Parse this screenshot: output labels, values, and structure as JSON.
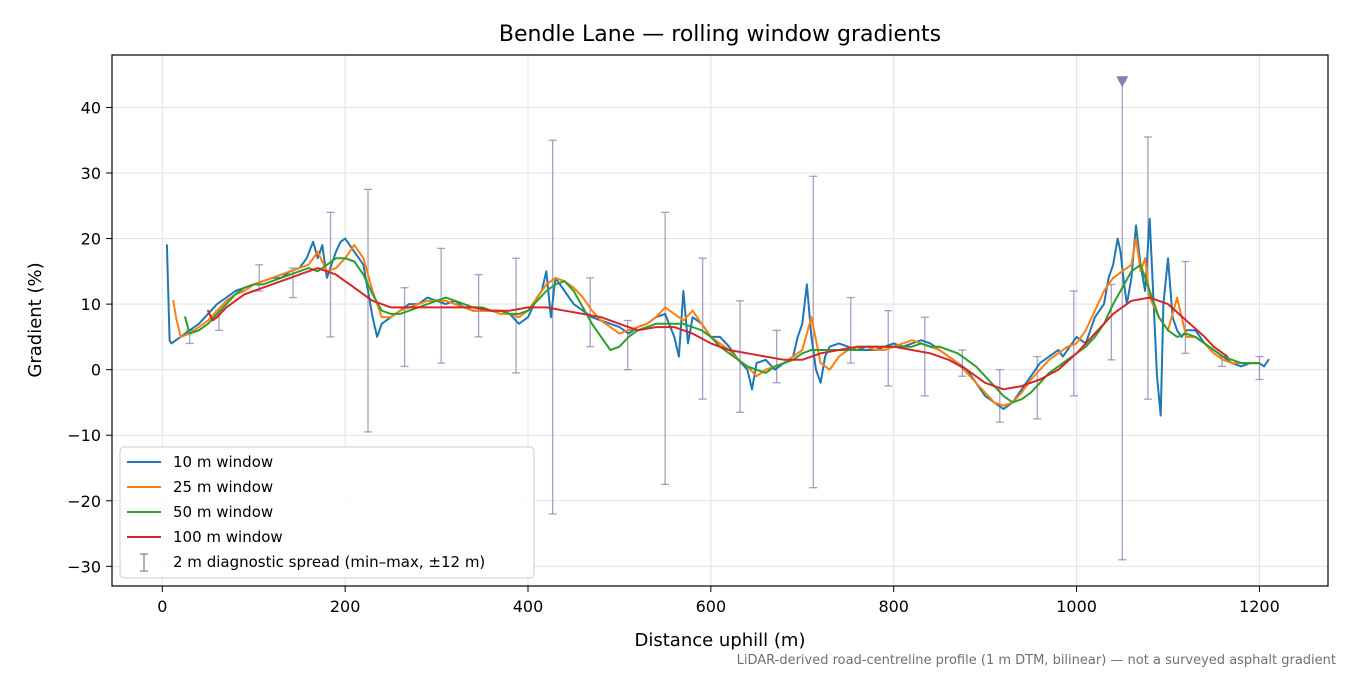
{
  "chart_data": {
    "type": "line",
    "title": "Bendle Lane — rolling window gradients",
    "xlabel": "Distance uphill (m)",
    "ylabel": "Gradient (%)",
    "xlim": [
      -55,
      1275
    ],
    "ylim": [
      -33,
      48
    ],
    "xticks": [
      0,
      200,
      400,
      600,
      800,
      1000,
      1200
    ],
    "yticks": [
      -30,
      -20,
      -10,
      0,
      10,
      20,
      30,
      40
    ],
    "xtick_labels": [
      "0",
      "200",
      "400",
      "600",
      "800",
      "1000",
      "1200"
    ],
    "ytick_labels": [
      "−30",
      "−20",
      "−10",
      "0",
      "10",
      "20",
      "30",
      "40"
    ],
    "grid": true,
    "legend_position": "lower-left",
    "footnote": "LiDAR-derived road-centreline profile (1 m DTM, bilinear) — not a surveyed asphalt gradient",
    "series": [
      {
        "name": "10 m window",
        "color": "#1f77b4",
        "x": [
          5,
          8,
          10,
          15,
          20,
          25,
          30,
          40,
          50,
          60,
          70,
          80,
          90,
          100,
          110,
          120,
          130,
          140,
          150,
          158,
          165,
          170,
          175,
          180,
          185,
          190,
          195,
          200,
          205,
          210,
          215,
          220,
          225,
          230,
          235,
          240,
          250,
          260,
          270,
          280,
          290,
          300,
          310,
          320,
          330,
          340,
          350,
          360,
          370,
          380,
          390,
          400,
          410,
          415,
          420,
          425,
          430,
          435,
          440,
          445,
          450,
          460,
          470,
          480,
          490,
          500,
          510,
          520,
          530,
          540,
          550,
          560,
          565,
          570,
          575,
          580,
          590,
          600,
          610,
          620,
          630,
          640,
          645,
          650,
          660,
          670,
          680,
          690,
          695,
          700,
          705,
          710,
          715,
          720,
          725,
          730,
          740,
          750,
          760,
          770,
          780,
          790,
          800,
          810,
          820,
          830,
          840,
          850,
          860,
          870,
          880,
          890,
          900,
          910,
          920,
          930,
          940,
          950,
          960,
          970,
          980,
          985,
          990,
          1000,
          1010,
          1020,
          1030,
          1035,
          1040,
          1045,
          1048,
          1052,
          1055,
          1060,
          1065,
          1070,
          1075,
          1080,
          1085,
          1088,
          1092,
          1095,
          1100,
          1105,
          1110,
          1115,
          1120,
          1130,
          1140,
          1150,
          1160,
          1170,
          1180,
          1190,
          1200,
          1205,
          1210
        ],
        "y": [
          19,
          4.5,
          4,
          4.5,
          5,
          5.5,
          6,
          7,
          8.5,
          10,
          11,
          12,
          12.5,
          13,
          13.5,
          14,
          14,
          15,
          15.5,
          17,
          19.5,
          17,
          19,
          14,
          16,
          18,
          19.5,
          20,
          19,
          18,
          17,
          16,
          12,
          8,
          5,
          7,
          8,
          9,
          10,
          10,
          11,
          10.5,
          10,
          10.5,
          9.5,
          9,
          9,
          9,
          9,
          8.5,
          7,
          8,
          11,
          12,
          15,
          8,
          14,
          13,
          12,
          11,
          10,
          9,
          8,
          7.5,
          7,
          6.5,
          5.5,
          6.5,
          7,
          8,
          8.5,
          5,
          2,
          12,
          4,
          8,
          7,
          5,
          5,
          3.5,
          1.5,
          0,
          -3,
          1,
          1.5,
          0,
          1,
          2,
          5,
          7,
          13,
          5,
          0,
          -2,
          2,
          3.5,
          4,
          3.5,
          3,
          3,
          3,
          3.5,
          4,
          3.5,
          4,
          4.5,
          4,
          3,
          2,
          1,
          0,
          -2,
          -4,
          -5,
          -6,
          -5,
          -3,
          -1,
          1,
          2,
          3,
          2,
          3,
          5,
          4,
          8,
          10,
          14,
          16,
          20,
          18,
          13,
          10,
          14,
          22,
          16,
          12,
          23,
          8,
          -1,
          -7,
          10,
          17,
          8,
          6,
          5,
          6,
          6,
          4,
          3,
          2,
          1,
          0.5,
          1,
          1,
          0.5,
          1.5
        ]
      },
      {
        "name": "25 m window",
        "color": "#ff7f0e",
        "x": [
          12,
          15,
          20,
          30,
          40,
          50,
          60,
          70,
          80,
          90,
          100,
          110,
          120,
          130,
          140,
          150,
          160,
          170,
          180,
          190,
          200,
          210,
          220,
          230,
          240,
          250,
          260,
          270,
          280,
          290,
          300,
          310,
          320,
          330,
          340,
          350,
          360,
          370,
          380,
          390,
          400,
          410,
          420,
          430,
          440,
          450,
          460,
          470,
          480,
          490,
          500,
          510,
          520,
          530,
          540,
          550,
          560,
          570,
          580,
          590,
          600,
          610,
          620,
          630,
          640,
          650,
          660,
          670,
          680,
          690,
          700,
          710,
          720,
          730,
          740,
          750,
          760,
          770,
          780,
          790,
          800,
          810,
          820,
          830,
          840,
          850,
          860,
          870,
          880,
          890,
          900,
          910,
          920,
          930,
          940,
          950,
          960,
          970,
          980,
          990,
          1000,
          1010,
          1020,
          1030,
          1040,
          1050,
          1060,
          1065,
          1070,
          1075,
          1080,
          1090,
          1100,
          1110,
          1120,
          1130,
          1140,
          1150,
          1160,
          1170,
          1180,
          1190,
          1200
        ],
        "y": [
          10.5,
          8,
          5,
          5.5,
          6.5,
          7.5,
          9,
          10.5,
          11.5,
          12,
          13,
          13.5,
          14,
          14.5,
          15,
          15.5,
          16,
          18,
          15,
          15.5,
          17,
          19,
          17,
          12,
          8,
          8,
          9,
          9.5,
          10,
          10.5,
          10.5,
          10.5,
          10,
          9.5,
          9,
          9,
          9,
          8.5,
          8.5,
          8,
          9,
          11,
          13,
          14,
          13.5,
          12.5,
          11,
          9,
          7.5,
          6.5,
          5.5,
          6,
          6.5,
          7,
          8,
          9.5,
          8.5,
          7.5,
          9,
          7,
          5,
          4,
          3,
          1.5,
          0.5,
          -1,
          0,
          0.5,
          1,
          2,
          3,
          8,
          1,
          0,
          2,
          3,
          3.5,
          3.5,
          3,
          3,
          3.5,
          4,
          4.5,
          4,
          3.5,
          3,
          2,
          1,
          -0.5,
          -2,
          -3.5,
          -5,
          -5.5,
          -5,
          -3.5,
          -1.5,
          0,
          1.5,
          2.5,
          3.5,
          4,
          6,
          9,
          12,
          14,
          15,
          16,
          20,
          15,
          17,
          11,
          8,
          6,
          11,
          5,
          5,
          4,
          2.5,
          1.5,
          1,
          1,
          1,
          1
        ]
      },
      {
        "name": "50 m window",
        "color": "#2ca02c",
        "x": [
          25,
          30,
          40,
          50,
          60,
          70,
          80,
          90,
          100,
          110,
          120,
          130,
          140,
          150,
          160,
          170,
          180,
          190,
          200,
          210,
          220,
          230,
          240,
          250,
          260,
          270,
          280,
          290,
          300,
          310,
          320,
          330,
          340,
          350,
          360,
          370,
          380,
          390,
          400,
          410,
          420,
          430,
          440,
          450,
          460,
          470,
          480,
          490,
          500,
          510,
          520,
          530,
          540,
          550,
          560,
          570,
          580,
          590,
          600,
          610,
          620,
          630,
          640,
          650,
          660,
          670,
          680,
          690,
          700,
          710,
          720,
          730,
          740,
          750,
          760,
          770,
          780,
          790,
          800,
          810,
          820,
          830,
          840,
          850,
          860,
          870,
          880,
          890,
          900,
          910,
          920,
          930,
          940,
          950,
          960,
          970,
          980,
          990,
          1000,
          1010,
          1020,
          1030,
          1040,
          1050,
          1060,
          1070,
          1080,
          1090,
          1100,
          1110,
          1120,
          1130,
          1140,
          1150,
          1160,
          1170,
          1180,
          1190,
          1200
        ],
        "y": [
          8,
          5.5,
          6,
          7,
          8.5,
          10,
          11.5,
          12.5,
          13,
          13,
          13.5,
          14,
          14.5,
          15,
          15.5,
          15,
          16,
          17,
          17,
          16.5,
          14.5,
          11.5,
          9,
          8.5,
          8.5,
          9,
          9.5,
          10,
          10.5,
          11,
          10.5,
          10,
          9.5,
          9.5,
          9,
          9,
          8.5,
          8.5,
          9,
          10.5,
          12,
          13,
          13.5,
          12,
          9.5,
          7,
          5,
          3,
          3.5,
          5,
          6,
          6.5,
          7,
          7,
          7,
          7,
          6.5,
          6,
          5,
          3.5,
          2.5,
          1.5,
          0.5,
          0,
          -0.5,
          0.5,
          1,
          1.5,
          2.5,
          3,
          3,
          3,
          3,
          3,
          3,
          3.5,
          3.5,
          3.5,
          3.5,
          3.5,
          3.5,
          4,
          3.5,
          3.5,
          3,
          2.5,
          1.5,
          0.5,
          -1,
          -2.5,
          -4,
          -5,
          -4.5,
          -3.5,
          -2,
          -0.5,
          0.5,
          1.5,
          2.5,
          3.5,
          5,
          7,
          10,
          12.5,
          15,
          16,
          12,
          8,
          6,
          5,
          5.5,
          5,
          4,
          3,
          2,
          1.5,
          1,
          1,
          1
        ]
      },
      {
        "name": "100 m window",
        "color": "#d62728",
        "x": [
          50,
          55,
          60,
          70,
          80,
          90,
          100,
          110,
          120,
          130,
          140,
          150,
          160,
          170,
          180,
          190,
          200,
          210,
          220,
          230,
          240,
          250,
          260,
          270,
          280,
          290,
          300,
          320,
          340,
          360,
          380,
          400,
          420,
          440,
          460,
          480,
          500,
          520,
          540,
          560,
          580,
          600,
          620,
          640,
          660,
          680,
          700,
          720,
          740,
          760,
          780,
          800,
          820,
          840,
          860,
          880,
          900,
          920,
          940,
          960,
          980,
          1000,
          1020,
          1040,
          1060,
          1080,
          1100,
          1120,
          1140,
          1150,
          1160,
          1165
        ],
        "y": [
          9,
          7.5,
          8,
          9.5,
          10.5,
          11.5,
          12,
          12.5,
          13,
          13.5,
          14,
          14.5,
          15,
          15.5,
          15,
          14.5,
          13.5,
          12.5,
          11.5,
          10.5,
          10,
          9.5,
          9.5,
          9.5,
          9.5,
          9.5,
          9.5,
          9.5,
          9.5,
          9,
          9,
          9.5,
          9.5,
          9,
          8.5,
          8,
          7,
          6,
          6.5,
          6.5,
          5.5,
          4,
          3,
          2.5,
          2,
          1.5,
          1.5,
          2.5,
          3,
          3.5,
          3.5,
          3.5,
          3,
          2.5,
          1.5,
          0,
          -2,
          -3,
          -2.5,
          -1.5,
          0,
          2.5,
          5.5,
          8.5,
          10.5,
          11,
          10,
          7.5,
          5,
          3.5,
          2.5,
          2
        ]
      }
    ],
    "spread_series": {
      "name": "2 m diagnostic spread (min–max, ±12 m)",
      "color": "#8c7fb0",
      "x": [
        30,
        62,
        106,
        143,
        184,
        225,
        265,
        305,
        346,
        387,
        427,
        468,
        509,
        550,
        591,
        632,
        672,
        712,
        753,
        794,
        834,
        875,
        916,
        957,
        997,
        1038,
        1050,
        1078,
        1119,
        1159,
        1200
      ],
      "lower": [
        4,
        6,
        12,
        11,
        5,
        -9.5,
        0.5,
        1,
        5,
        -0.5,
        -22,
        3.5,
        0,
        -17.5,
        -4.5,
        -6.5,
        -2,
        -18,
        1,
        -2.5,
        -4,
        -1,
        -8,
        -7.5,
        -4,
        1.5,
        -29,
        -4.5,
        2.5,
        0.5,
        -1.5
      ],
      "upper": [
        6,
        9,
        16,
        15.5,
        24,
        27.5,
        12.5,
        18.5,
        14.5,
        17,
        35,
        14,
        7.5,
        24,
        17,
        10.5,
        6,
        29.5,
        11,
        9,
        8,
        3,
        0,
        2,
        12,
        13,
        44,
        35.5,
        16.5,
        2,
        2
      ],
      "marker_x": 1050,
      "marker_y": 44
    }
  }
}
